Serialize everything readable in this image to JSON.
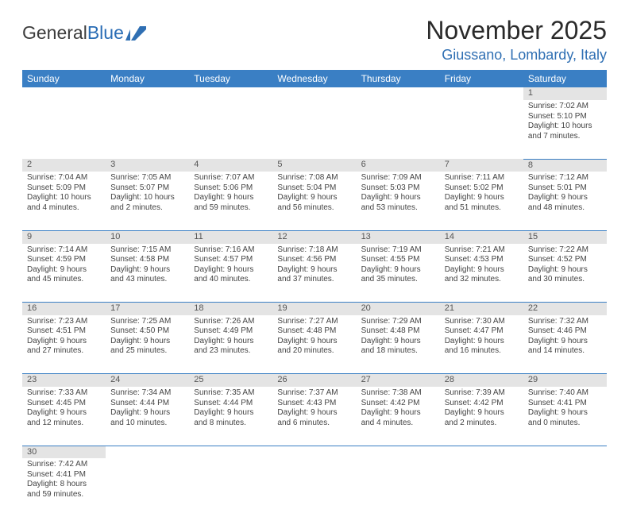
{
  "logo": {
    "text1": "General",
    "text2": "Blue"
  },
  "title": "November 2025",
  "location": "Giussano, Lombardy, Italy",
  "colors": {
    "header_bg": "#3a7fc4",
    "header_fg": "#ffffff",
    "daynum_bg": "#e4e4e4",
    "cell_border": "#3a7fc4",
    "location_color": "#2f6fb3"
  },
  "weekdays": [
    "Sunday",
    "Monday",
    "Tuesday",
    "Wednesday",
    "Thursday",
    "Friday",
    "Saturday"
  ],
  "weeks": [
    [
      null,
      null,
      null,
      null,
      null,
      null,
      {
        "n": "1",
        "sr": "7:02 AM",
        "ss": "5:10 PM",
        "dl": "10 hours and 7 minutes."
      }
    ],
    [
      {
        "n": "2",
        "sr": "7:04 AM",
        "ss": "5:09 PM",
        "dl": "10 hours and 4 minutes."
      },
      {
        "n": "3",
        "sr": "7:05 AM",
        "ss": "5:07 PM",
        "dl": "10 hours and 2 minutes."
      },
      {
        "n": "4",
        "sr": "7:07 AM",
        "ss": "5:06 PM",
        "dl": "9 hours and 59 minutes."
      },
      {
        "n": "5",
        "sr": "7:08 AM",
        "ss": "5:04 PM",
        "dl": "9 hours and 56 minutes."
      },
      {
        "n": "6",
        "sr": "7:09 AM",
        "ss": "5:03 PM",
        "dl": "9 hours and 53 minutes."
      },
      {
        "n": "7",
        "sr": "7:11 AM",
        "ss": "5:02 PM",
        "dl": "9 hours and 51 minutes."
      },
      {
        "n": "8",
        "sr": "7:12 AM",
        "ss": "5:01 PM",
        "dl": "9 hours and 48 minutes."
      }
    ],
    [
      {
        "n": "9",
        "sr": "7:14 AM",
        "ss": "4:59 PM",
        "dl": "9 hours and 45 minutes."
      },
      {
        "n": "10",
        "sr": "7:15 AM",
        "ss": "4:58 PM",
        "dl": "9 hours and 43 minutes."
      },
      {
        "n": "11",
        "sr": "7:16 AM",
        "ss": "4:57 PM",
        "dl": "9 hours and 40 minutes."
      },
      {
        "n": "12",
        "sr": "7:18 AM",
        "ss": "4:56 PM",
        "dl": "9 hours and 37 minutes."
      },
      {
        "n": "13",
        "sr": "7:19 AM",
        "ss": "4:55 PM",
        "dl": "9 hours and 35 minutes."
      },
      {
        "n": "14",
        "sr": "7:21 AM",
        "ss": "4:53 PM",
        "dl": "9 hours and 32 minutes."
      },
      {
        "n": "15",
        "sr": "7:22 AM",
        "ss": "4:52 PM",
        "dl": "9 hours and 30 minutes."
      }
    ],
    [
      {
        "n": "16",
        "sr": "7:23 AM",
        "ss": "4:51 PM",
        "dl": "9 hours and 27 minutes."
      },
      {
        "n": "17",
        "sr": "7:25 AM",
        "ss": "4:50 PM",
        "dl": "9 hours and 25 minutes."
      },
      {
        "n": "18",
        "sr": "7:26 AM",
        "ss": "4:49 PM",
        "dl": "9 hours and 23 minutes."
      },
      {
        "n": "19",
        "sr": "7:27 AM",
        "ss": "4:48 PM",
        "dl": "9 hours and 20 minutes."
      },
      {
        "n": "20",
        "sr": "7:29 AM",
        "ss": "4:48 PM",
        "dl": "9 hours and 18 minutes."
      },
      {
        "n": "21",
        "sr": "7:30 AM",
        "ss": "4:47 PM",
        "dl": "9 hours and 16 minutes."
      },
      {
        "n": "22",
        "sr": "7:32 AM",
        "ss": "4:46 PM",
        "dl": "9 hours and 14 minutes."
      }
    ],
    [
      {
        "n": "23",
        "sr": "7:33 AM",
        "ss": "4:45 PM",
        "dl": "9 hours and 12 minutes."
      },
      {
        "n": "24",
        "sr": "7:34 AM",
        "ss": "4:44 PM",
        "dl": "9 hours and 10 minutes."
      },
      {
        "n": "25",
        "sr": "7:35 AM",
        "ss": "4:44 PM",
        "dl": "9 hours and 8 minutes."
      },
      {
        "n": "26",
        "sr": "7:37 AM",
        "ss": "4:43 PM",
        "dl": "9 hours and 6 minutes."
      },
      {
        "n": "27",
        "sr": "7:38 AM",
        "ss": "4:42 PM",
        "dl": "9 hours and 4 minutes."
      },
      {
        "n": "28",
        "sr": "7:39 AM",
        "ss": "4:42 PM",
        "dl": "9 hours and 2 minutes."
      },
      {
        "n": "29",
        "sr": "7:40 AM",
        "ss": "4:41 PM",
        "dl": "9 hours and 0 minutes."
      }
    ],
    [
      {
        "n": "30",
        "sr": "7:42 AM",
        "ss": "4:41 PM",
        "dl": "8 hours and 59 minutes."
      },
      null,
      null,
      null,
      null,
      null,
      null
    ]
  ],
  "labels": {
    "sunrise": "Sunrise:",
    "sunset": "Sunset:",
    "daylight": "Daylight:"
  }
}
